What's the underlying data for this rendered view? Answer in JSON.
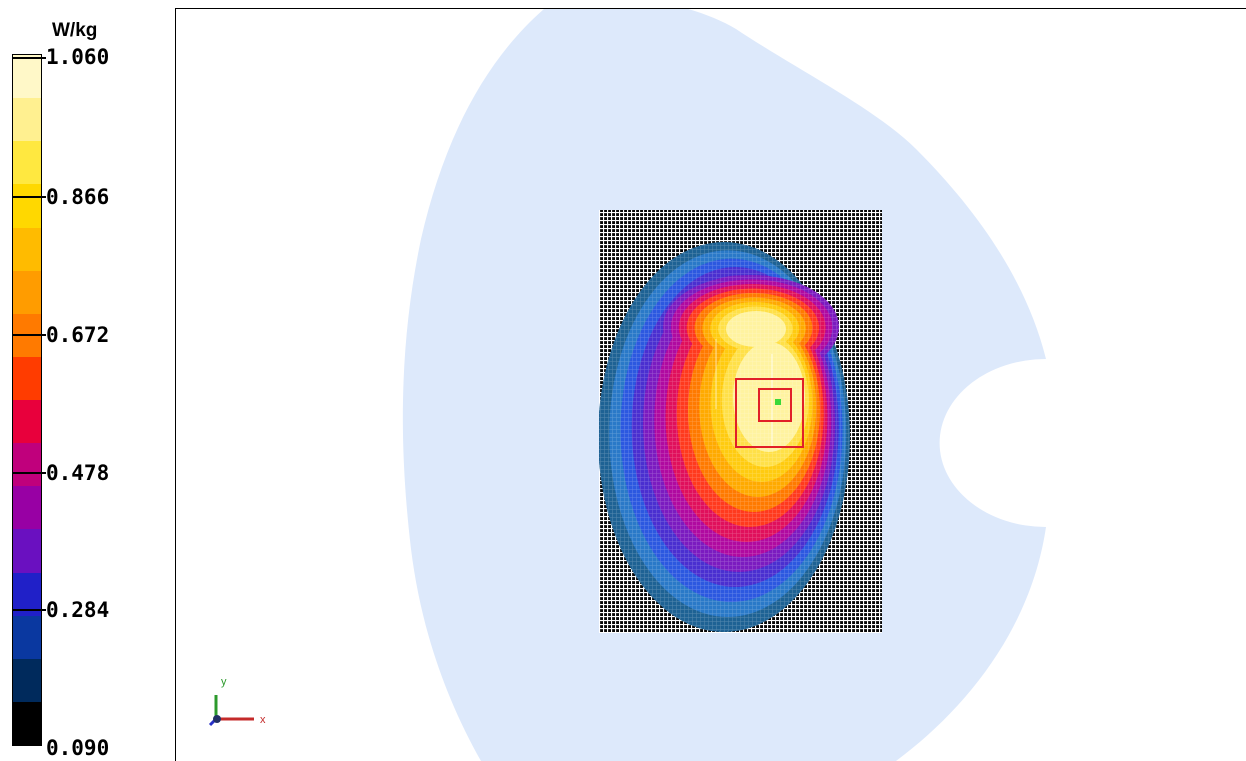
{
  "legend": {
    "unit": "W/kg",
    "ticks": [
      "1.060",
      "0.866",
      "0.672",
      "0.478",
      "0.284",
      "0.090"
    ],
    "bands": [
      "#fff8c8",
      "#fff090",
      "#ffe840",
      "#ffd800",
      "#ffbb00",
      "#ff9c00",
      "#ff7a00",
      "#ff3c00",
      "#e8003c",
      "#c0007c",
      "#9800a4",
      "#6a10c0",
      "#2020c8",
      "#0a38a0",
      "#002a5c",
      "#000000"
    ]
  },
  "axes_triad": {
    "x_label": "x",
    "y_label": "y"
  },
  "colors": {
    "phantom": "#dde9fb",
    "grid_dark": "#050505",
    "peak_box": "#e11f28",
    "peak_point": "#39d83a"
  },
  "contour_colors": [
    "#1e6294",
    "#2a79c8",
    "#2c58e0",
    "#4a2fd0",
    "#7b1bc0",
    "#b00aa0",
    "#e0105c",
    "#ff3a1e",
    "#ff7a00",
    "#ffaa00",
    "#ffcb10",
    "#ffe048",
    "#fff3a0"
  ]
}
